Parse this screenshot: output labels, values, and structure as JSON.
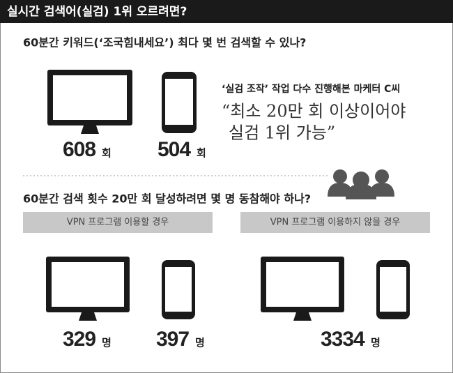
{
  "header": {
    "title": "실시간 검색어(실검) 1위 오르려면?"
  },
  "section1": {
    "question": "60분간 키워드(‘조국힘내세요’) 최다 몇 번 검색할 수 있나?",
    "pc": {
      "count": "608",
      "unit": "회"
    },
    "mobile": {
      "count": "504",
      "unit": "회"
    },
    "quote": {
      "source": "‘실검 조작’ 작업 다수 진행해본 마케터 C씨",
      "lines": [
        "“최소 20만 회 이상이어야",
        "실검 1위 가능”"
      ]
    }
  },
  "section2": {
    "question": "60분간 검색 횟수 20만 회 달성하려면 몇 명 동참해야 하나?",
    "with_vpn": {
      "label": "VPN 프로그램 이용할 경우",
      "pc": {
        "count": "329",
        "unit": "명"
      },
      "mobile": {
        "count": "397",
        "unit": "명"
      }
    },
    "without_vpn": {
      "label": "VPN 프로그램 이용하지 않을 경우",
      "total": {
        "count": "3334",
        "unit": "명"
      }
    }
  }
}
